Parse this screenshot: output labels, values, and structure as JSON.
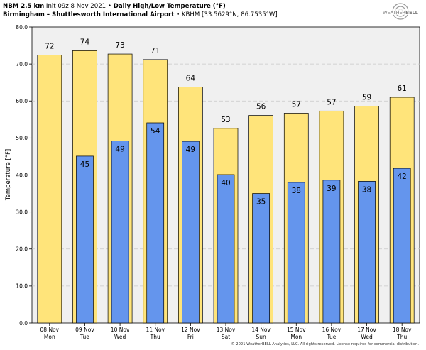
{
  "header": {
    "model": "NBM 2.5 km",
    "init": "Init 09z 8 Nov 2021",
    "sep": "•",
    "product": "Daily High/Low Temperature (°F)",
    "station_name": "Birmingham – Shuttlesworth International Airport",
    "station_id": "• KBHM [33.5629°N, 86.7535°W]"
  },
  "logo": {
    "text_pre": "WEATHER",
    "text_post": "BELL"
  },
  "footer": {
    "text": "© 2021 WeatherBELL Analytics, LLC. All rights reserved. License required for commercial distribution."
  },
  "colors": {
    "high": "#ffe47a",
    "low": "#6495ed",
    "plot_bg": "#f0f0f0",
    "grid": "#c8c8c8"
  },
  "chart_data": {
    "type": "bar",
    "ylabel": "Temperature [°F]",
    "ylim": [
      0,
      80
    ],
    "yticks": [
      "0.0",
      "10.0",
      "20.0",
      "30.0",
      "40.0",
      "50.0",
      "60.0",
      "70.0",
      "80.0"
    ],
    "grid": true,
    "categories": [
      [
        "08 Nov",
        "Mon"
      ],
      [
        "09 Nov",
        "Tue"
      ],
      [
        "10 Nov",
        "Wed"
      ],
      [
        "11 Nov",
        "Thu"
      ],
      [
        "12 Nov",
        "Fri"
      ],
      [
        "13 Nov",
        "Sat"
      ],
      [
        "14 Nov",
        "Sun"
      ],
      [
        "15 Nov",
        "Mon"
      ],
      [
        "16 Nov",
        "Tue"
      ],
      [
        "17 Nov",
        "Wed"
      ],
      [
        "18 Nov",
        "Thu"
      ]
    ],
    "series": [
      {
        "key": "high",
        "values": [
          72.4,
          73.6,
          72.7,
          71.2,
          63.8,
          52.6,
          56.1,
          56.7,
          57.3,
          58.6,
          61.0
        ],
        "labels": [
          "72",
          "74",
          "73",
          "71",
          "64",
          "53",
          "56",
          "57",
          "57",
          "59",
          "61"
        ]
      },
      {
        "key": "low",
        "values": [
          null,
          45.1,
          49.2,
          54.1,
          49.1,
          40.1,
          35.0,
          38.0,
          38.6,
          38.3,
          41.8
        ],
        "labels": [
          null,
          "45",
          "49",
          "54",
          "49",
          "40",
          "35",
          "38",
          "39",
          "38",
          "42"
        ]
      }
    ]
  }
}
